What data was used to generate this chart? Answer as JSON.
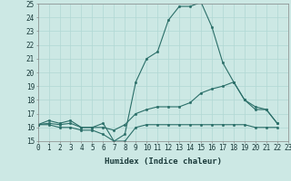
{
  "xlabel": "Humidex (Indice chaleur)",
  "x": [
    0,
    1,
    2,
    3,
    4,
    5,
    6,
    7,
    8,
    9,
    10,
    11,
    12,
    13,
    14,
    15,
    16,
    17,
    18,
    19,
    20,
    21,
    22,
    23
  ],
  "line_max": [
    16.2,
    16.5,
    16.3,
    16.5,
    16.0,
    16.0,
    16.3,
    15.0,
    15.5,
    19.3,
    21.0,
    21.5,
    23.8,
    24.8,
    24.8,
    25.1,
    23.3,
    20.7,
    19.3,
    18.0,
    17.3,
    17.3,
    16.3,
    null
  ],
  "line_mean": [
    16.2,
    16.3,
    16.2,
    16.3,
    16.0,
    16.0,
    16.0,
    15.8,
    16.2,
    17.0,
    17.3,
    17.5,
    17.5,
    17.5,
    17.8,
    18.5,
    18.8,
    19.0,
    19.3,
    18.0,
    17.5,
    17.3,
    16.3,
    null
  ],
  "line_min": [
    16.2,
    16.2,
    16.0,
    16.0,
    15.8,
    15.8,
    15.5,
    15.0,
    15.0,
    16.0,
    16.2,
    16.2,
    16.2,
    16.2,
    16.2,
    16.2,
    16.2,
    16.2,
    16.2,
    16.2,
    16.0,
    16.0,
    16.0,
    null
  ],
  "ylim": [
    15,
    25
  ],
  "xlim": [
    0,
    23
  ],
  "yticks": [
    15,
    16,
    17,
    18,
    19,
    20,
    21,
    22,
    23,
    24,
    25
  ],
  "xticks": [
    0,
    1,
    2,
    3,
    4,
    5,
    6,
    7,
    8,
    9,
    10,
    11,
    12,
    13,
    14,
    15,
    16,
    17,
    18,
    19,
    20,
    21,
    22,
    23
  ],
  "line_color": "#2a6e68",
  "bg_color": "#cce8e4",
  "grid_color": "#b0d8d4",
  "tick_fontsize": 5.5,
  "label_fontsize": 6.5
}
